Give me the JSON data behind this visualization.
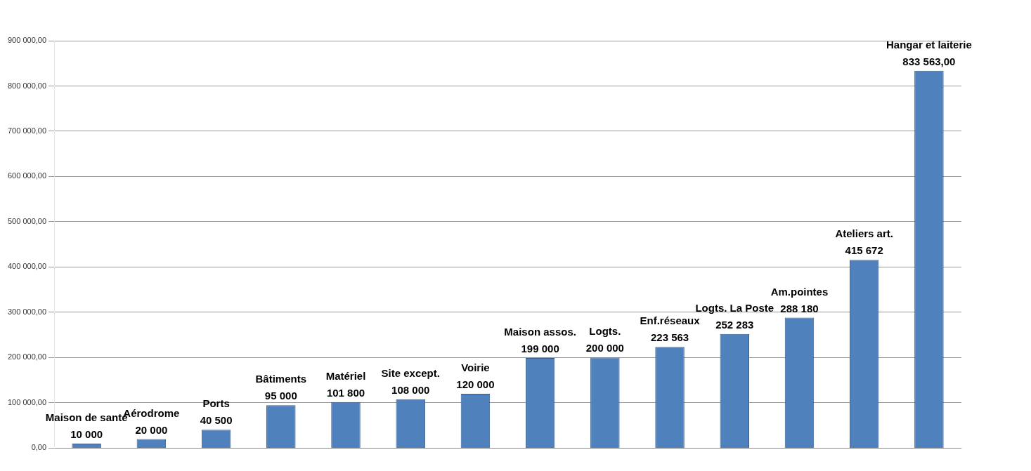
{
  "chart_data": {
    "type": "bar",
    "categories": [
      "Maison de santé",
      "Aérodrome",
      "Ports",
      "Bâtiments",
      "Matériel",
      "Site except.",
      "Voirie",
      "Maison assos.",
      "Logts.",
      "Enf.réseaux",
      "Logts. La Poste",
      "Am.pointes",
      "Ateliers art.",
      "Hangar et laiterie"
    ],
    "values": [
      10000,
      20000,
      40500,
      95000,
      101800,
      108000,
      120000,
      199000,
      200000,
      223563,
      252283,
      288180,
      415672,
      833563
    ],
    "value_labels": [
      "10 000",
      "20 000",
      "40 500",
      "95 000",
      "101 800",
      "108 000",
      "120 000",
      "199 000",
      "200 000",
      "223 563",
      "252 283",
      "288 180",
      "415 672",
      "833 563,00"
    ],
    "color": "#4f81bd",
    "ylim": [
      0,
      900000
    ],
    "yticks": [
      {
        "value": 0,
        "label": "0,00"
      },
      {
        "value": 100000,
        "label": "100 000,00"
      },
      {
        "value": 200000,
        "label": "200 000,00"
      },
      {
        "value": 300000,
        "label": "300 000,00"
      },
      {
        "value": 400000,
        "label": "400 000,00"
      },
      {
        "value": 500000,
        "label": "500 000,00"
      },
      {
        "value": 600000,
        "label": "600 000,00"
      },
      {
        "value": 700000,
        "label": "700 000,00"
      },
      {
        "value": 800000,
        "label": "800 000,00"
      },
      {
        "value": 900000,
        "label": "900 000,00"
      }
    ],
    "grid": "y",
    "legend": false,
    "tick_labels": "y"
  }
}
